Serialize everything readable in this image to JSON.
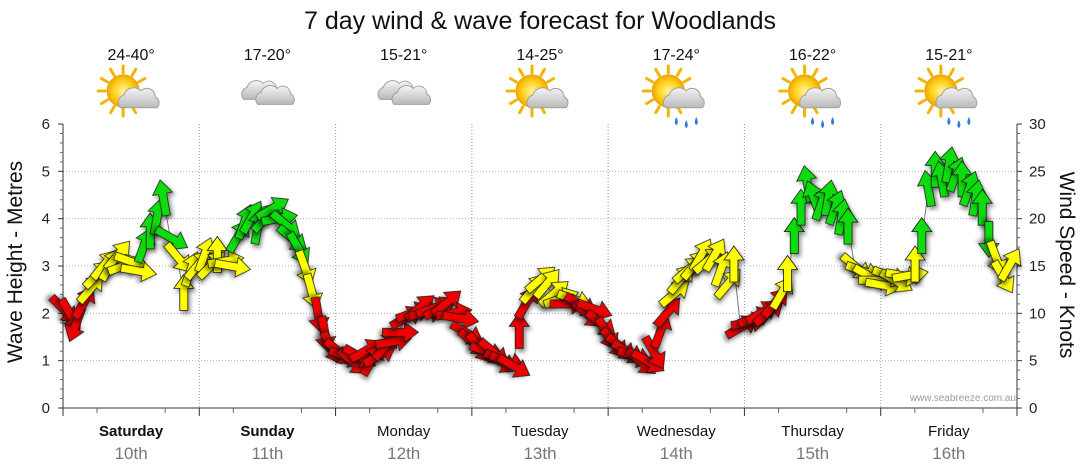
{
  "chart_data": {
    "type": "line",
    "title": "7 day wind & wave forecast for Woodlands",
    "left_axis": {
      "label": "Wave Height - Metres",
      "ticks": [
        "0",
        "1",
        "2",
        "3",
        "4",
        "5",
        "6"
      ],
      "range": [
        0,
        6
      ]
    },
    "right_axis": {
      "label": "Wind Speed - Knots",
      "ticks": [
        "0",
        "5",
        "10",
        "15",
        "20",
        "25",
        "30"
      ],
      "range": [
        0,
        30
      ]
    },
    "days": [
      {
        "name": "Saturday",
        "date": "10th",
        "bold": true,
        "temp": "24-40°",
        "icon": "sun-cloud-icon"
      },
      {
        "name": "Sunday",
        "date": "11th",
        "bold": true,
        "temp": "17-20°",
        "icon": "cloud-icon"
      },
      {
        "name": "Monday",
        "date": "12th",
        "bold": false,
        "temp": "15-21°",
        "icon": "cloud-icon"
      },
      {
        "name": "Tuesday",
        "date": "13th",
        "bold": false,
        "temp": "14-25°",
        "icon": "sun-cloud-icon"
      },
      {
        "name": "Wednesday",
        "date": "14th",
        "bold": false,
        "temp": "17-24°",
        "icon": "sun-cloud-rain-icon"
      },
      {
        "name": "Thursday",
        "date": "15th",
        "bold": false,
        "temp": "16-22°",
        "icon": "sun-cloud-rain-icon"
      },
      {
        "name": "Friday",
        "date": "16th",
        "bold": false,
        "temp": "15-21°",
        "icon": "sun-cloud-rain-icon"
      }
    ],
    "wind_arrows": {
      "speed_colors": {
        "low": "#ee0000",
        "medium": "#ffff00",
        "high": "#11dd11"
      },
      "points": [
        {
          "h": 0,
          "kn": 10.5,
          "dir": 135
        },
        {
          "h": 3,
          "kn": 10,
          "dir": 150
        },
        {
          "h": 6,
          "kn": 9,
          "dir": 200
        },
        {
          "h": 9,
          "kn": 11,
          "dir": 30
        },
        {
          "h": 12,
          "kn": 12.5,
          "dir": 40
        },
        {
          "h": 15,
          "kn": 14,
          "dir": 45
        },
        {
          "h": 18,
          "kn": 15,
          "dir": 40
        },
        {
          "h": 21,
          "kn": 15,
          "dir": 30
        },
        {
          "h": 24,
          "kn": 16,
          "dir": 40
        },
        {
          "h": 27,
          "kn": 15,
          "dir": 70
        },
        {
          "h": 30,
          "kn": 15.5,
          "dir": 110
        },
        {
          "h": 33,
          "kn": 14.5,
          "dir": 100
        },
        {
          "h": 36,
          "kn": 17,
          "dir": 20
        },
        {
          "h": 39,
          "kn": 18.5,
          "dir": 0
        },
        {
          "h": 42,
          "kn": 20,
          "dir": 10
        },
        {
          "h": 45,
          "kn": 22,
          "dir": 350
        },
        {
          "h": 48,
          "kn": 18,
          "dir": 120
        },
        {
          "h": 51,
          "kn": 16,
          "dir": 140
        },
        {
          "h": 54,
          "kn": 12,
          "dir": 0
        },
        {
          "h": 57,
          "kn": 14.5,
          "dir": 20
        },
        {
          "h": 60,
          "kn": 15,
          "dir": 40
        },
        {
          "h": 63,
          "kn": 16,
          "dir": 20
        },
        {
          "h": 66,
          "kn": 15,
          "dir": 45
        },
        {
          "h": 69,
          "kn": 16,
          "dir": 0
        },
        {
          "h": 72,
          "kn": 15.5,
          "dir": 80
        },
        {
          "h": 75,
          "kn": 15,
          "dir": 100
        },
        {
          "h": 78,
          "kn": 18,
          "dir": 30
        },
        {
          "h": 81,
          "kn": 19.5,
          "dir": 20
        },
        {
          "h": 84,
          "kn": 20,
          "dir": 30
        },
        {
          "h": 87,
          "kn": 19,
          "dir": 10
        },
        {
          "h": 90,
          "kn": 20,
          "dir": 40
        },
        {
          "h": 93,
          "kn": 21,
          "dir": 60
        },
        {
          "h": 96,
          "kn": 20,
          "dir": 80
        },
        {
          "h": 99,
          "kn": 19.5,
          "dir": 130
        },
        {
          "h": 102,
          "kn": 18,
          "dir": 130
        },
        {
          "h": 105,
          "kn": 17,
          "dir": 150
        },
        {
          "h": 108,
          "kn": 15,
          "dir": 160
        },
        {
          "h": 111,
          "kn": 12.5,
          "dir": 165
        },
        {
          "h": 114,
          "kn": 10,
          "dir": 170
        },
        {
          "h": 117,
          "kn": 8,
          "dir": 170
        },
        {
          "h": 120,
          "kn": 6.5,
          "dir": 150
        },
        {
          "h": 123,
          "kn": 6,
          "dir": 130
        },
        {
          "h": 126,
          "kn": 5.5,
          "dir": 110
        },
        {
          "h": 129,
          "kn": 5,
          "dir": 130
        },
        {
          "h": 132,
          "kn": 5.5,
          "dir": 120
        },
        {
          "h": 135,
          "kn": 6,
          "dir": 60
        },
        {
          "h": 138,
          "kn": 5,
          "dir": 30
        },
        {
          "h": 141,
          "kn": 5.5,
          "dir": 60
        },
        {
          "h": 144,
          "kn": 6.5,
          "dir": 40
        },
        {
          "h": 147,
          "kn": 7,
          "dir": 80
        },
        {
          "h": 150,
          "kn": 8,
          "dir": 90
        },
        {
          "h": 153,
          "kn": 9.5,
          "dir": 60
        },
        {
          "h": 156,
          "kn": 10,
          "dir": 70
        },
        {
          "h": 159,
          "kn": 10.5,
          "dir": 50
        },
        {
          "h": 162,
          "kn": 10,
          "dir": 80
        },
        {
          "h": 165,
          "kn": 10.5,
          "dir": 70
        },
        {
          "h": 168,
          "kn": 10.5,
          "dir": 60
        },
        {
          "h": 171,
          "kn": 11,
          "dir": 50
        },
        {
          "h": 174,
          "kn": 10,
          "dir": 80
        },
        {
          "h": 177,
          "kn": 9.5,
          "dir": 100
        },
        {
          "h": 180,
          "kn": 8,
          "dir": 120
        },
        {
          "h": 183,
          "kn": 7,
          "dir": 130
        },
        {
          "h": 186,
          "kn": 6.5,
          "dir": 140
        },
        {
          "h": 189,
          "kn": 6,
          "dir": 110
        },
        {
          "h": 192,
          "kn": 6,
          "dir": 130
        },
        {
          "h": 195,
          "kn": 5,
          "dir": 120
        },
        {
          "h": 198,
          "kn": 5,
          "dir": 110
        },
        {
          "h": 201,
          "kn": 4.5,
          "dir": 120
        },
        {
          "h": 204,
          "kn": 8,
          "dir": 0
        },
        {
          "h": 207,
          "kn": 11,
          "dir": 30
        },
        {
          "h": 210,
          "kn": 12.5,
          "dir": 40
        },
        {
          "h": 213,
          "kn": 13.5,
          "dir": 50
        },
        {
          "h": 216,
          "kn": 13,
          "dir": 40
        },
        {
          "h": 219,
          "kn": 12,
          "dir": 50
        },
        {
          "h": 222,
          "kn": 11.5,
          "dir": 70
        },
        {
          "h": 225,
          "kn": 11,
          "dir": 90
        },
        {
          "h": 228,
          "kn": 11.5,
          "dir": 110
        },
        {
          "h": 231,
          "kn": 11,
          "dir": 120
        },
        {
          "h": 234,
          "kn": 10,
          "dir": 130
        },
        {
          "h": 237,
          "kn": 10.5,
          "dir": 110
        },
        {
          "h": 240,
          "kn": 9,
          "dir": 130
        },
        {
          "h": 243,
          "kn": 8,
          "dir": 150
        },
        {
          "h": 246,
          "kn": 7,
          "dir": 140
        },
        {
          "h": 249,
          "kn": 6.5,
          "dir": 130
        },
        {
          "h": 252,
          "kn": 6,
          "dir": 120
        },
        {
          "h": 255,
          "kn": 5.5,
          "dir": 110
        },
        {
          "h": 258,
          "kn": 5,
          "dir": 130
        },
        {
          "h": 261,
          "kn": 5,
          "dir": 120
        },
        {
          "h": 264,
          "kn": 6,
          "dir": 150
        },
        {
          "h": 267,
          "kn": 8,
          "dir": 20
        },
        {
          "h": 270,
          "kn": 10,
          "dir": 40
        },
        {
          "h": 273,
          "kn": 12,
          "dir": 50
        },
        {
          "h": 276,
          "kn": 13.5,
          "dir": 40
        },
        {
          "h": 279,
          "kn": 14.5,
          "dir": 50
        },
        {
          "h": 282,
          "kn": 15,
          "dir": 40
        },
        {
          "h": 285,
          "kn": 16,
          "dir": 30
        },
        {
          "h": 288,
          "kn": 15.5,
          "dir": 50
        },
        {
          "h": 291,
          "kn": 16,
          "dir": 30
        },
        {
          "h": 294,
          "kn": 14.5,
          "dir": 20
        },
        {
          "h": 297,
          "kn": 13,
          "dir": 40
        },
        {
          "h": 300,
          "kn": 15,
          "dir": 0
        },
        {
          "h": 303,
          "kn": 8.5,
          "dir": 60
        },
        {
          "h": 306,
          "kn": 9,
          "dir": 80
        },
        {
          "h": 309,
          "kn": 9.5,
          "dir": 70
        },
        {
          "h": 312,
          "kn": 10,
          "dir": 60
        },
        {
          "h": 315,
          "kn": 10,
          "dir": 50
        },
        {
          "h": 318,
          "kn": 11,
          "dir": 40
        },
        {
          "h": 321,
          "kn": 12,
          "dir": 30
        },
        {
          "h": 324,
          "kn": 14,
          "dir": 0
        },
        {
          "h": 327,
          "kn": 18,
          "dir": 0
        },
        {
          "h": 330,
          "kn": 21,
          "dir": 0
        },
        {
          "h": 333,
          "kn": 23.5,
          "dir": 350
        },
        {
          "h": 336,
          "kn": 22,
          "dir": 340
        },
        {
          "h": 339,
          "kn": 21.5,
          "dir": 20
        },
        {
          "h": 342,
          "kn": 22,
          "dir": 10
        },
        {
          "h": 345,
          "kn": 21,
          "dir": 20
        },
        {
          "h": 348,
          "kn": 20,
          "dir": 10
        },
        {
          "h": 351,
          "kn": 19,
          "dir": 0
        },
        {
          "h": 354,
          "kn": 15,
          "dir": 130
        },
        {
          "h": 357,
          "kn": 14.5,
          "dir": 110
        },
        {
          "h": 360,
          "kn": 14,
          "dir": 120
        },
        {
          "h": 363,
          "kn": 13.5,
          "dir": 90
        },
        {
          "h": 366,
          "kn": 13,
          "dir": 100
        },
        {
          "h": 369,
          "kn": 14,
          "dir": 110
        },
        {
          "h": 372,
          "kn": 13.5,
          "dir": 120
        },
        {
          "h": 375,
          "kn": 14,
          "dir": 100
        },
        {
          "h": 378,
          "kn": 14,
          "dir": 80
        },
        {
          "h": 381,
          "kn": 15,
          "dir": 0
        },
        {
          "h": 384,
          "kn": 18,
          "dir": 0
        },
        {
          "h": 387,
          "kn": 23,
          "dir": 350
        },
        {
          "h": 390,
          "kn": 25,
          "dir": 0
        },
        {
          "h": 393,
          "kn": 24,
          "dir": 350
        },
        {
          "h": 396,
          "kn": 25.5,
          "dir": 10
        },
        {
          "h": 399,
          "kn": 24.5,
          "dir": 20
        },
        {
          "h": 402,
          "kn": 24,
          "dir": 0
        },
        {
          "h": 405,
          "kn": 23,
          "dir": 20
        },
        {
          "h": 408,
          "kn": 22,
          "dir": 10
        },
        {
          "h": 411,
          "kn": 21,
          "dir": 0
        },
        {
          "h": 414,
          "kn": 18,
          "dir": 180
        },
        {
          "h": 417,
          "kn": 16,
          "dir": 160
        },
        {
          "h": 420,
          "kn": 14,
          "dir": 150
        },
        {
          "h": 423,
          "kn": 15,
          "dir": 30
        }
      ]
    },
    "watermark": "www.seabreeze.com.au"
  }
}
